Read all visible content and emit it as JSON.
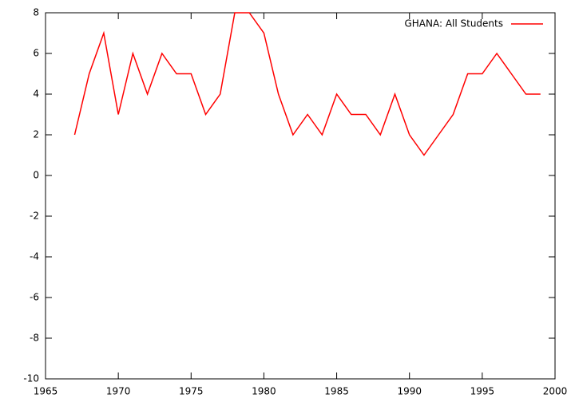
{
  "chart_data": {
    "type": "line",
    "x": [
      1967,
      1968,
      1969,
      1970,
      1971,
      1972,
      1973,
      1974,
      1975,
      1976,
      1977,
      1978,
      1979,
      1980,
      1981,
      1982,
      1983,
      1984,
      1985,
      1986,
      1987,
      1988,
      1989,
      1990,
      1991,
      1992,
      1993,
      1994,
      1995,
      1996,
      1997,
      1998,
      1999
    ],
    "series": [
      {
        "name": "GHANA: All Students",
        "color": "#ff0000",
        "values": [
          2,
          5,
          7,
          3,
          6,
          4,
          6,
          5,
          5,
          3,
          4,
          8,
          8,
          7,
          4,
          2,
          3,
          2,
          4,
          3,
          3,
          2,
          4,
          2,
          1,
          2,
          3,
          5,
          5,
          6,
          5,
          4,
          4
        ]
      }
    ],
    "xlim": [
      1965,
      2000
    ],
    "xticks": [
      1965,
      1970,
      1975,
      1980,
      1985,
      1990,
      1995,
      2000
    ],
    "ylim": [
      -10,
      8
    ],
    "yticks": [
      -10,
      -8,
      -6,
      -4,
      -2,
      0,
      2,
      4,
      6,
      8
    ],
    "grid": false,
    "legend": "top-right"
  }
}
